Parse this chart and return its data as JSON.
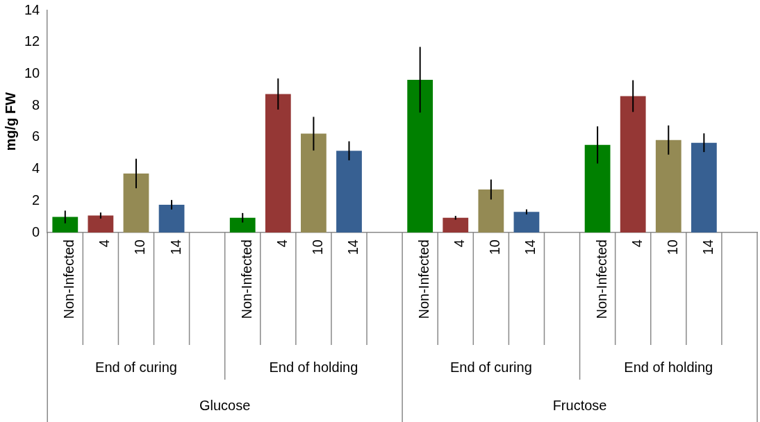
{
  "chart_data": {
    "type": "bar",
    "ylabel": "mg/g FW",
    "categories": [
      "Non-Infected",
      "4",
      "10",
      "14",
      null,
      "Non-Infected",
      "4",
      "10",
      "14",
      null,
      "Non-Infected",
      "4",
      "10",
      "14",
      null,
      "Non-Infected",
      "4",
      "10",
      "14",
      null
    ],
    "values": [
      0.98,
      1.07,
      3.72,
      1.75,
      null,
      0.93,
      8.73,
      6.23,
      5.15,
      null,
      9.63,
      0.93,
      2.71,
      1.3,
      null,
      5.52,
      8.6,
      5.83,
      5.66,
      null
    ],
    "errors": [
      0.4,
      0.19,
      0.93,
      0.3,
      null,
      0.3,
      0.98,
      1.06,
      0.6,
      null,
      2.07,
      0.12,
      0.63,
      0.16,
      null,
      1.17,
      1.0,
      0.92,
      0.59,
      null
    ],
    "colors": [
      "#008000",
      "#953735",
      "#948a54",
      "#376092",
      null,
      "#008000",
      "#953735",
      "#948a54",
      "#376092",
      null,
      "#008000",
      "#953735",
      "#948a54",
      "#376092",
      null,
      "#008000",
      "#953735",
      "#948a54",
      "#376092",
      null
    ],
    "annotations": [
      "End of curing",
      "End of holding",
      "End of curing",
      "End of holding",
      "Glucose",
      "Fructose"
    ],
    "ylim": [
      0,
      14
    ],
    "yticks": [
      0,
      2,
      4,
      6,
      8,
      10,
      12,
      14
    ],
    "grid": false,
    "legend": false
  }
}
